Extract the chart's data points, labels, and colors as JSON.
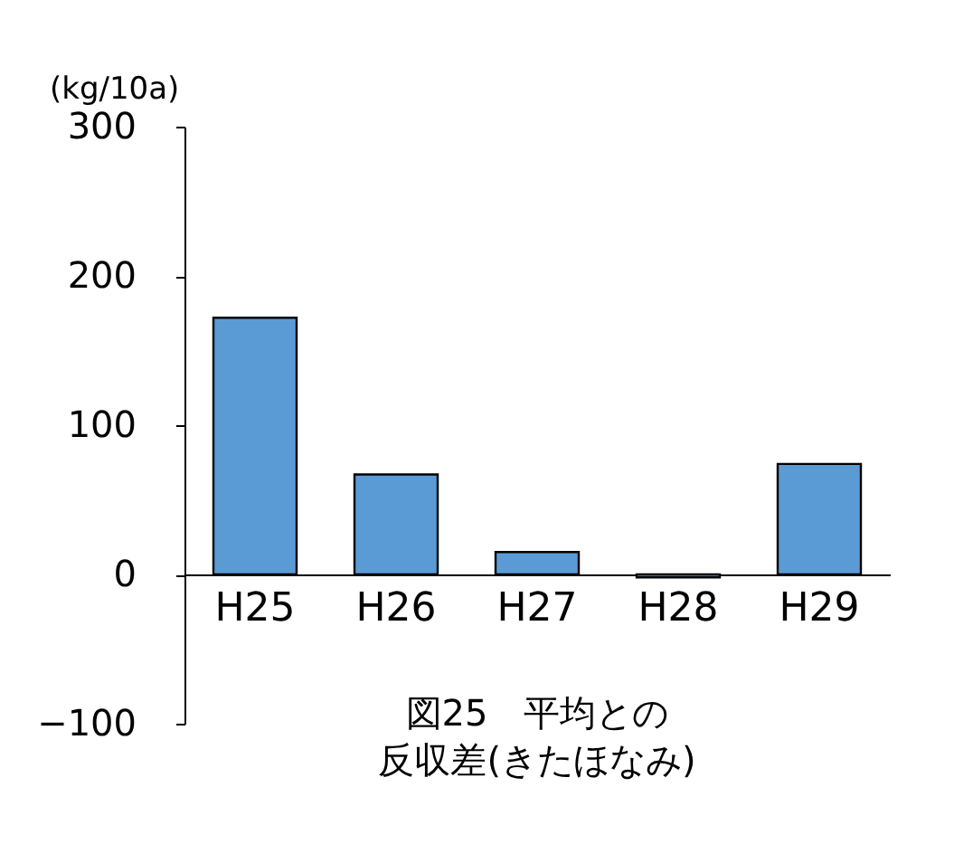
{
  "chart_data": {
    "type": "bar",
    "title": [
      "図25　平均との",
      "反収差(きたほなみ)"
    ],
    "ylabel": "(kg/10a)",
    "categories": [
      "H25",
      "H26",
      "H27",
      "H28",
      "H29"
    ],
    "values": [
      172,
      67,
      15,
      -2,
      74
    ],
    "color": "#5b9bd5",
    "ylim": [
      -100,
      300
    ],
    "yticks": [
      -100,
      0,
      100,
      200,
      300
    ],
    "grid": false
  }
}
